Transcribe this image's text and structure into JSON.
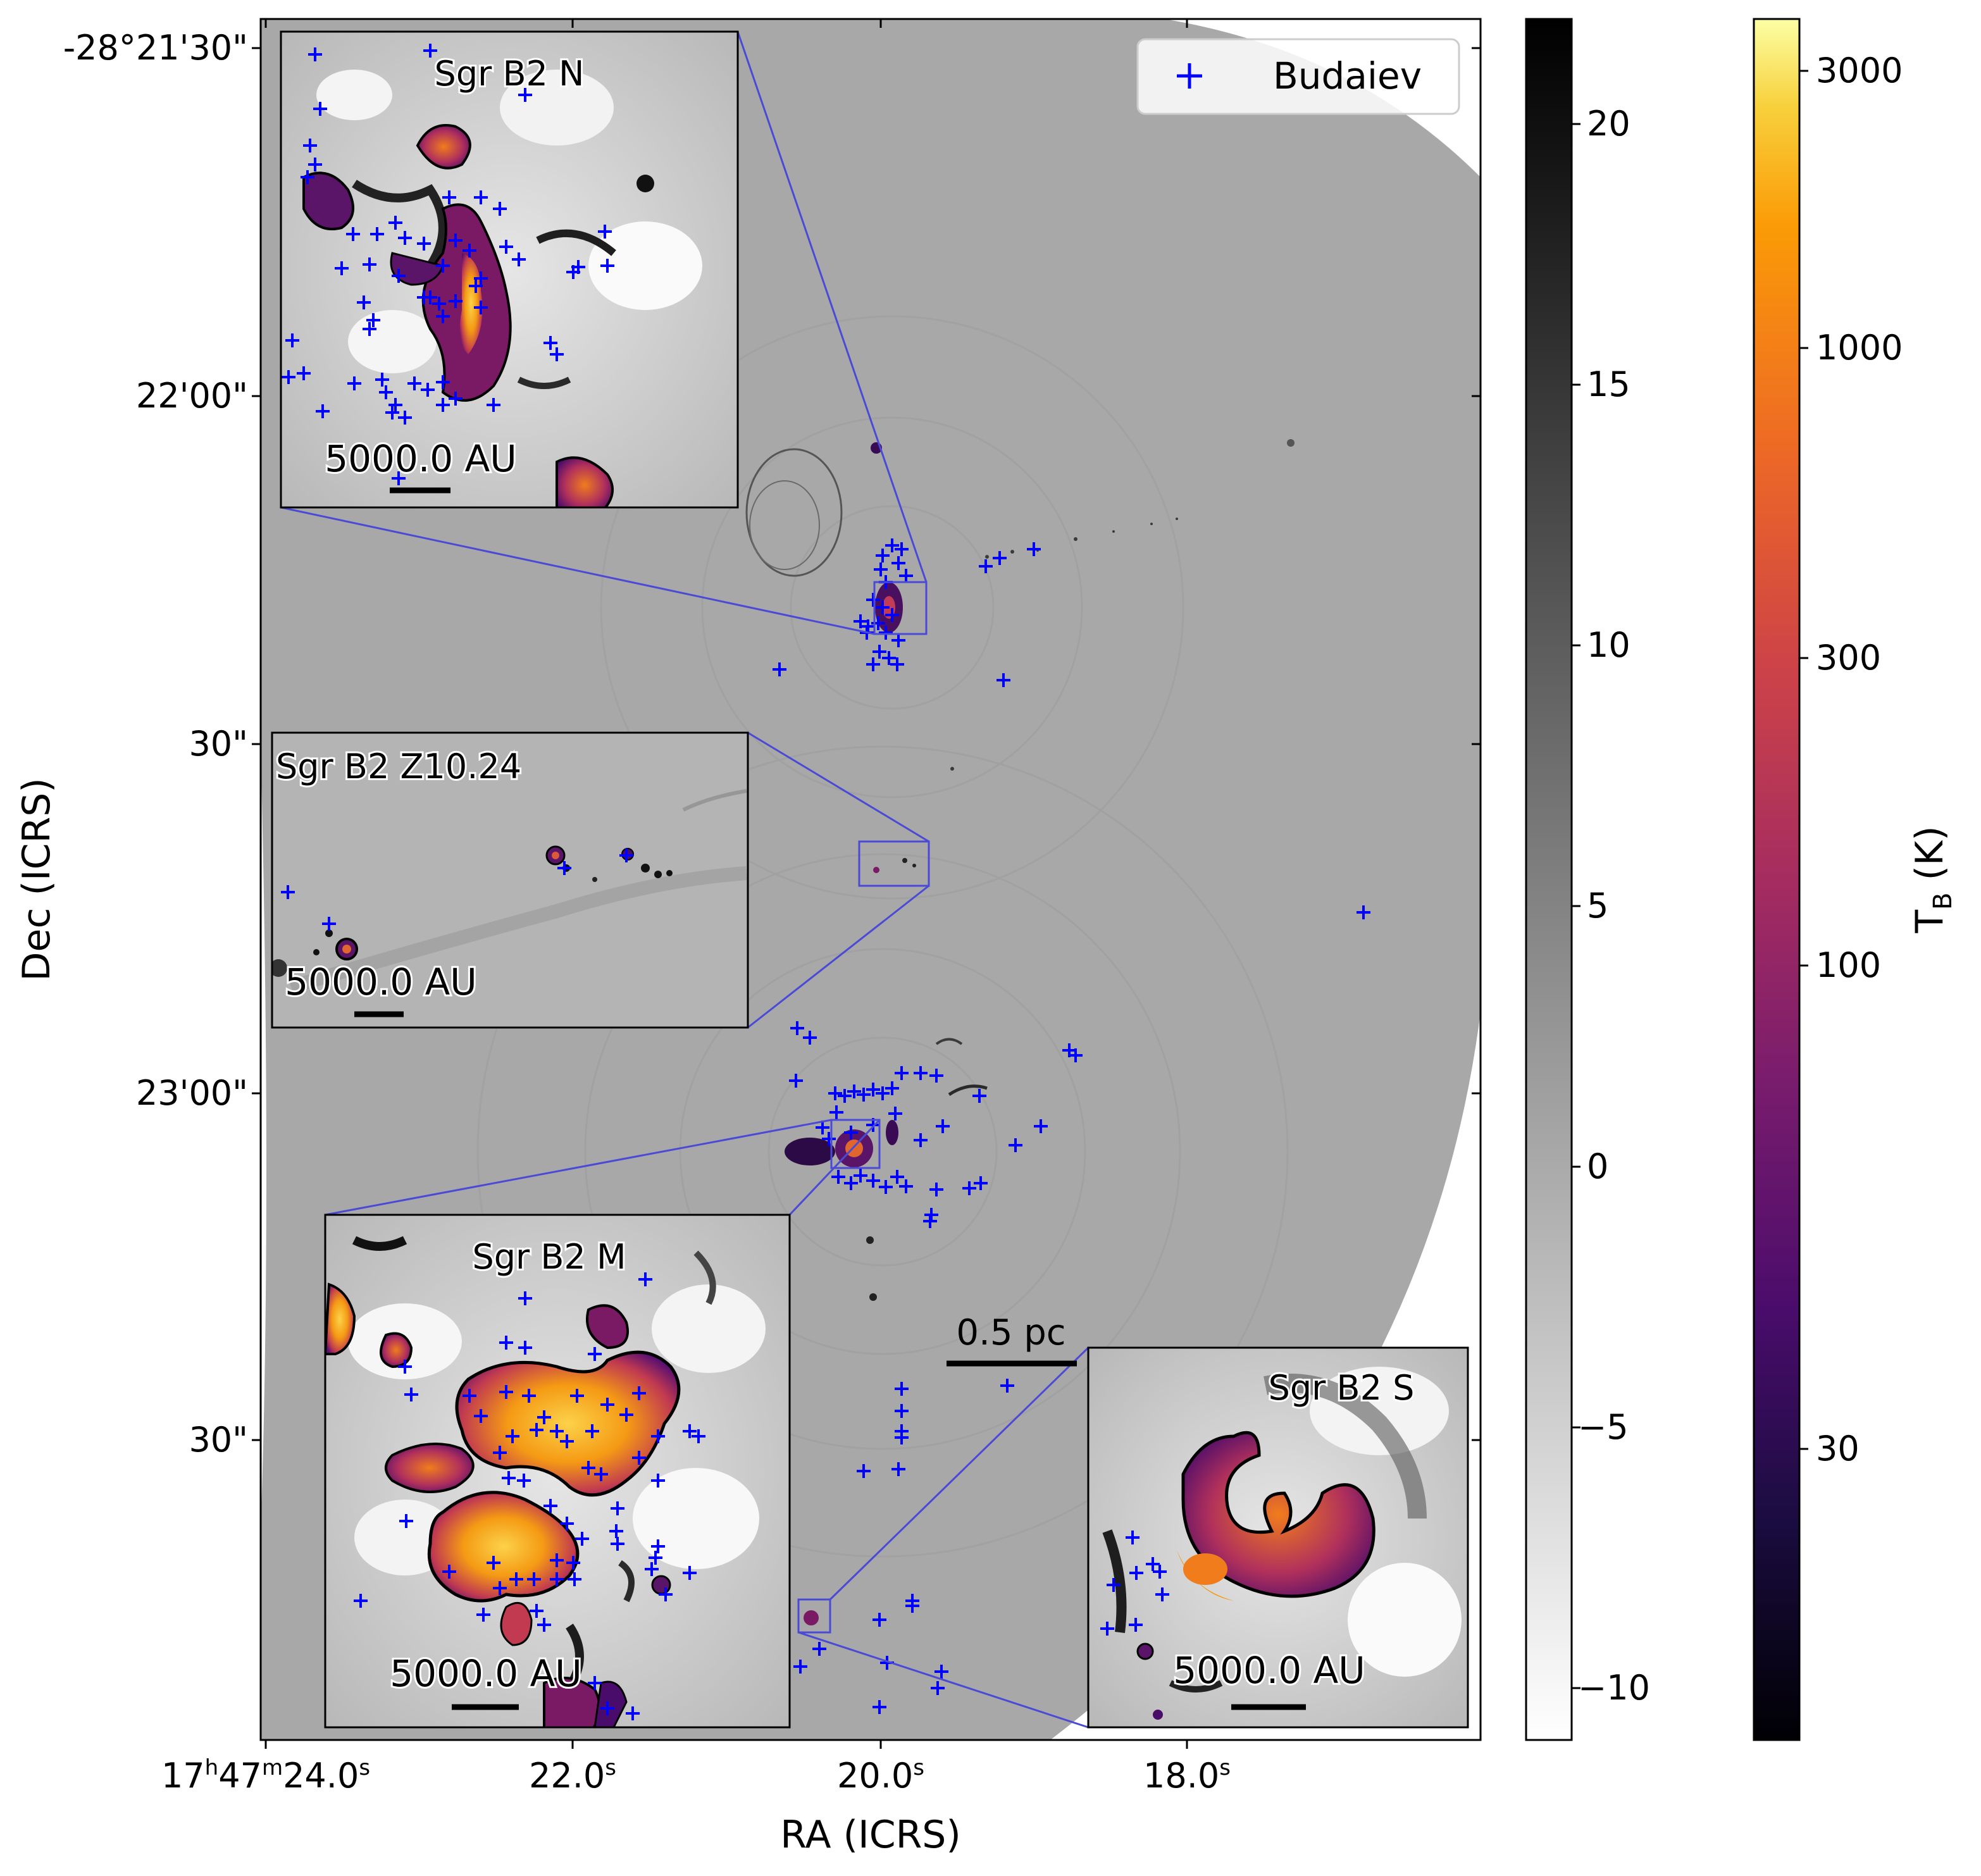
{
  "axes": {
    "xlabel": "RA (ICRS)",
    "ylabel": "Dec (ICRS)",
    "ra_ticks": [
      {
        "h": "17",
        "m": "47",
        "s": "24.0"
      },
      {
        "h": "",
        "m": "",
        "s": "22.0"
      },
      {
        "h": "",
        "m": "",
        "s": "20.0"
      },
      {
        "h": "",
        "m": "",
        "s": "18.0"
      }
    ],
    "dec_ticks": [
      "-28°21'30\"",
      "22'00\"",
      "30\"",
      "23'00\"",
      "30\""
    ]
  },
  "legend": {
    "marker": "+",
    "label": "Budaiev",
    "color": "#0000ff"
  },
  "scalebar_main": "0.5 pc",
  "insets": {
    "north": {
      "title": "Sgr B2 N",
      "scale": "5000.0 AU"
    },
    "z10": {
      "title": "Sgr B2 Z10.24",
      "scale": "5000.0 AU"
    },
    "middle": {
      "title": "Sgr B2 M",
      "scale": "5000.0 AU"
    },
    "south": {
      "title": "Sgr B2 S",
      "scale": "5000.0 AU"
    }
  },
  "colorbar_gray": {
    "ticks": [
      "20",
      "15",
      "10",
      "5",
      "0",
      "−5",
      "−10"
    ]
  },
  "colorbar_temp": {
    "label_main": "T",
    "label_sub": "B",
    "label_unit": " (K)",
    "ticks": [
      "3000",
      "1000",
      "300",
      "100",
      "30"
    ]
  },
  "colors": {
    "marker": "#0000ff",
    "inset_box": "#4a4ad6",
    "frame": "#000000"
  }
}
